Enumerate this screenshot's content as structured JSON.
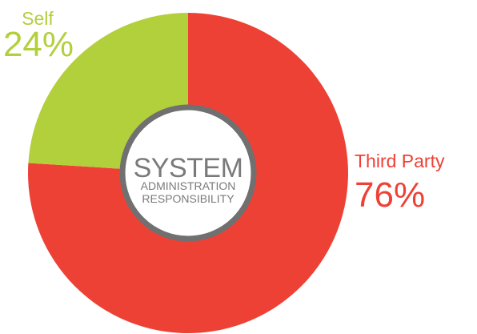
{
  "chart_data": {
    "type": "pie",
    "style": "donut",
    "center_label": {
      "title": "SYSTEM",
      "line1": "ADMINISTRATION",
      "line2": "RESPONSIBILITY"
    },
    "slices": [
      {
        "label": "Third Party",
        "value": 76,
        "value_label": "76%",
        "color": "#ee4136"
      },
      {
        "label": "Self",
        "value": 24,
        "value_label": "24%",
        "color": "#b2cf3c"
      }
    ],
    "legend": "none"
  },
  "colors": {
    "ring": "#707070",
    "center_text": "#7a7a7a"
  }
}
